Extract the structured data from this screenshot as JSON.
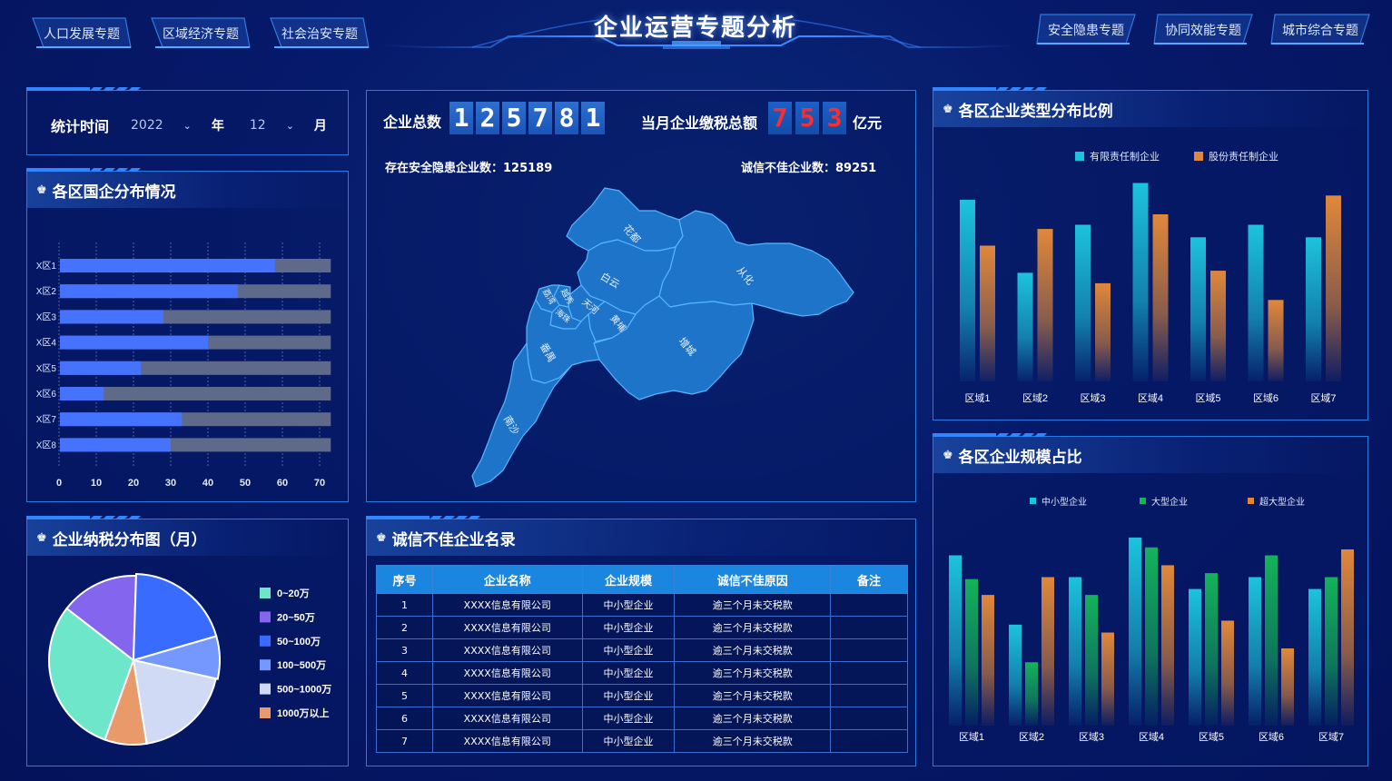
{
  "header": {
    "title": "企业运营专题分析",
    "left_tabs": [
      "人口发展专题",
      "区域经济专题",
      "社会治安专题"
    ],
    "right_tabs": [
      "安全隐患专题",
      "协同效能专题",
      "城市综合专题"
    ]
  },
  "time_panel": {
    "label": "统计时间",
    "year_value": "2022",
    "year_unit": "年",
    "month_value": "12",
    "month_unit": "月"
  },
  "center": {
    "total_label": "企业总数",
    "total_digits": [
      "1",
      "2",
      "5",
      "7",
      "8",
      "1"
    ],
    "tax_label": "当月企业缴税总额",
    "tax_digits": [
      "7",
      "5",
      "3"
    ],
    "tax_unit": "亿元",
    "hazard_text": "存在安全隐患企业数：125189",
    "credit_text": "诚信不佳企业数：89251",
    "map_regions": [
      "花都",
      "从化",
      "白云",
      "越秀",
      "荔湾",
      "海珠",
      "天河",
      "黄埔",
      "增城",
      "番禺",
      "南沙"
    ]
  },
  "state_owned": {
    "title": "各区国企分布情况",
    "icon": "users-icon",
    "chart_data": {
      "type": "bar",
      "orientation": "horizontal",
      "categories": [
        "X区1",
        "X区2",
        "X区3",
        "X区4",
        "X区5",
        "X区6",
        "X区7",
        "X区8"
      ],
      "series": [
        {
          "values": [
            58,
            48,
            28,
            40,
            22,
            12,
            33,
            30
          ]
        },
        {
          "values": [
            73,
            73,
            73,
            73,
            73,
            73,
            73,
            73
          ]
        }
      ],
      "xticks": [
        "0",
        "10",
        "20",
        "30",
        "40",
        "50",
        "60",
        "70"
      ],
      "xlim": [
        0,
        73
      ],
      "grid": "vertical dashed",
      "colors": [
        "#4573ff",
        "#5f6a8a"
      ]
    }
  },
  "tax_pie": {
    "title": "企业纳税分布图（月）",
    "icon": "users-icon",
    "chart_data": {
      "type": "pie",
      "labels": [
        "0~20万",
        "20~50万",
        "50~100万",
        "100~500万",
        "500~1000万",
        "1000万以上"
      ],
      "values": [
        30,
        15,
        20,
        8,
        19,
        8
      ],
      "colors": [
        "#6ee6c9",
        "#8466ee",
        "#3a6bff",
        "#7598ff",
        "#d0daf5",
        "#e99a6a"
      ],
      "legend": "right"
    }
  },
  "credit_table": {
    "title": "诚信不佳企业名录",
    "icon": "users-icon",
    "columns": [
      "序号",
      "企业名称",
      "企业规模",
      "诚信不佳原因",
      "备注"
    ],
    "rows": [
      [
        "1",
        "XXXX信息有限公司",
        "中小型企业",
        "逾三个月未交税款",
        ""
      ],
      [
        "2",
        "XXXX信息有限公司",
        "中小型企业",
        "逾三个月未交税款",
        ""
      ],
      [
        "3",
        "XXXX信息有限公司",
        "中小型企业",
        "逾三个月未交税款",
        ""
      ],
      [
        "4",
        "XXXX信息有限公司",
        "中小型企业",
        "逾三个月未交税款",
        ""
      ],
      [
        "5",
        "XXXX信息有限公司",
        "中小型企业",
        "逾三个月未交税款",
        ""
      ],
      [
        "6",
        "XXXX信息有限公司",
        "中小型企业",
        "逾三个月未交税款",
        ""
      ],
      [
        "7",
        "XXXX信息有限公司",
        "中小型企业",
        "逾三个月未交税款",
        ""
      ]
    ]
  },
  "type_dist": {
    "title": "各区企业类型分布比例",
    "icon": "users-icon",
    "chart_data": {
      "type": "bar",
      "categories": [
        "区域1",
        "区域2",
        "区域3",
        "区域4",
        "区域5",
        "区域6",
        "区域7"
      ],
      "series": [
        {
          "name": "有限责任制企业",
          "values": [
            87,
            52,
            75,
            95,
            69,
            75,
            69
          ]
        },
        {
          "name": "股份责任制企业",
          "values": [
            65,
            73,
            47,
            80,
            53,
            39,
            89
          ]
        }
      ],
      "colors": [
        "#1cc3dc",
        "#e0883a"
      ],
      "ylim": [
        0,
        100
      ],
      "legend": "top-center"
    }
  },
  "scale_dist": {
    "title": "各区企业规模占比",
    "icon": "users-icon",
    "chart_data": {
      "type": "bar",
      "categories": [
        "区域1",
        "区域2",
        "区域3",
        "区域4",
        "区域5",
        "区域6",
        "区域7"
      ],
      "series": [
        {
          "name": "中小型企业",
          "values": [
            86,
            51,
            75,
            95,
            69,
            75,
            69
          ]
        },
        {
          "name": "大型企业",
          "values": [
            74,
            32,
            66,
            90,
            77,
            86,
            75
          ]
        },
        {
          "name": "超大型企业",
          "values": [
            66,
            75,
            47,
            81,
            53,
            39,
            89
          ]
        }
      ],
      "colors": [
        "#1cc3dc",
        "#14b35a",
        "#e0883a"
      ],
      "ylim": [
        0,
        100
      ],
      "legend": "top-center"
    }
  }
}
